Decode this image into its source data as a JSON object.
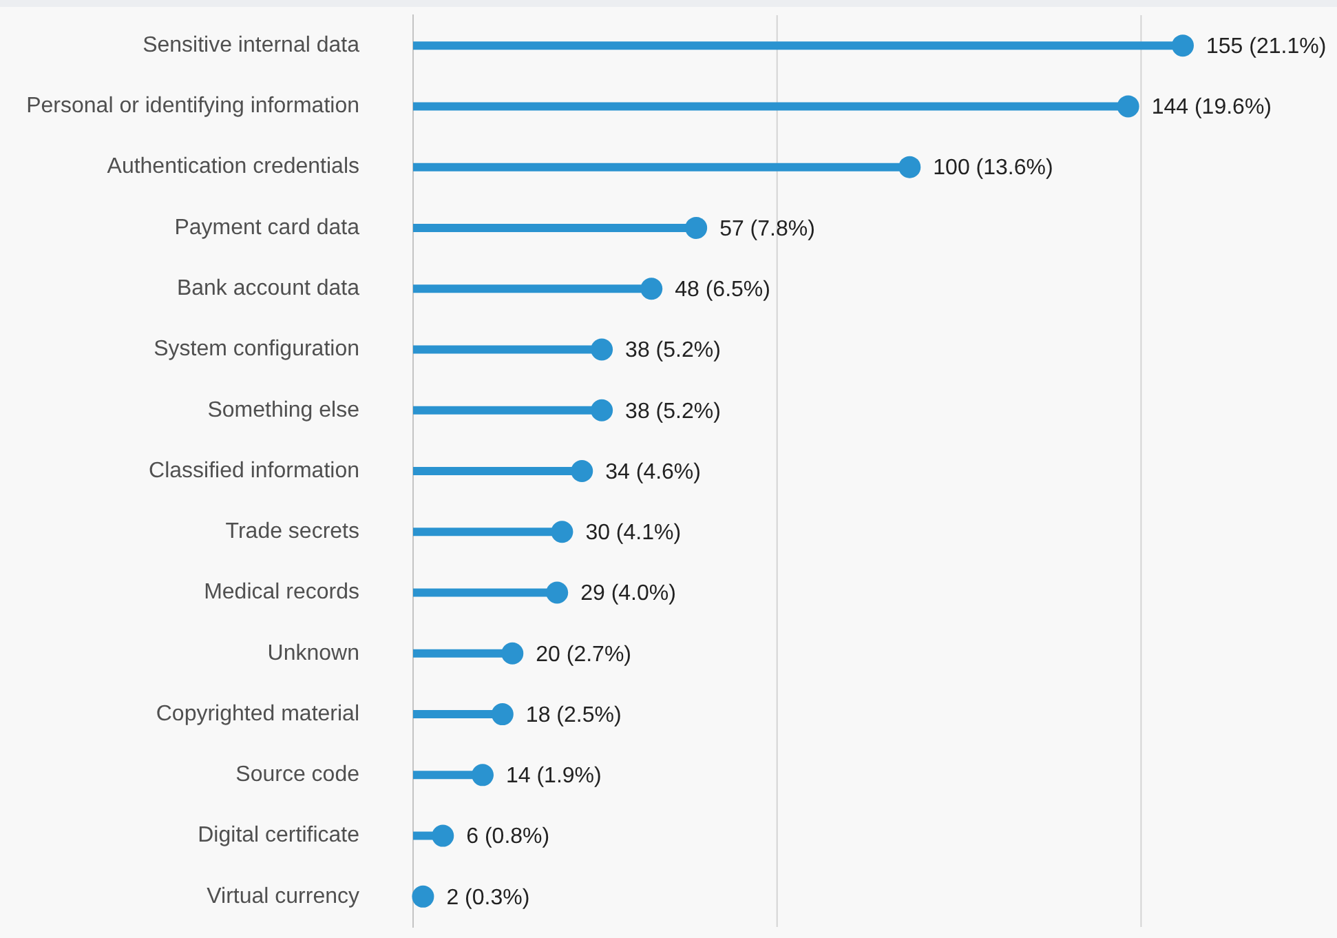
{
  "chart_data": {
    "type": "lollipop",
    "orientation": "horizontal",
    "categories": [
      "Sensitive internal data",
      "Personal or identifying information",
      "Authentication credentials",
      "Payment card data",
      "Bank account data",
      "System configuration",
      "Something else",
      "Classified information",
      "Trade secrets",
      "Medical records",
      "Unknown",
      "Copyrighted material",
      "Source code",
      "Digital certificate",
      "Virtual currency"
    ],
    "values": [
      155,
      144,
      100,
      57,
      48,
      38,
      38,
      34,
      30,
      29,
      20,
      18,
      14,
      6,
      2
    ],
    "value_labels": [
      "155 (21.1%)",
      "144 (19.6%)",
      "100 (13.6%)",
      "57 (7.8%)",
      "48 (6.5%)",
      "38 (5.2%)",
      "38 (5.2%)",
      "34 (4.6%)",
      "30 (4.1%)",
      "29 (4.0%)",
      "20 (2.7%)",
      "18 (2.5%)",
      "14 (1.9%)",
      "6 (0.8%)",
      "2 (0.3%)"
    ],
    "color": "#2a93d0",
    "ref_lines": [
      {
        "axis": "x",
        "value": 73.3,
        "color": "#d4d4d4",
        "line_style": "solid"
      },
      {
        "axis": "x",
        "value": 146.6,
        "color": "#d4d4d4",
        "line_style": "solid"
      }
    ],
    "tick_labels": "y"
  }
}
